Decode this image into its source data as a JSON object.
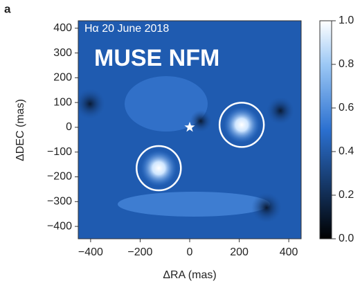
{
  "panel_label": "a",
  "chart_data": {
    "type": "image",
    "annotations": [
      "Hα 20 June 2018",
      "MUSE NFM"
    ],
    "xlabel": "ΔRA (mas)",
    "ylabel": "ΔDEC (mas)",
    "xlim": [
      -450,
      450
    ],
    "ylim": [
      -450,
      430
    ],
    "xticks": [
      {
        "value": -400,
        "label": "−400"
      },
      {
        "value": -200,
        "label": "−200"
      },
      0,
      200,
      400
    ],
    "yticks": [
      {
        "value": -400,
        "label": "−400"
      },
      {
        "value": -300,
        "label": "−300"
      },
      {
        "value": -200,
        "label": "−200"
      },
      {
        "value": -100,
        "label": "−100"
      },
      0,
      100,
      200,
      300,
      400
    ],
    "star": {
      "x": 0,
      "y": 0
    },
    "sources": {
      "x": [
        -125,
        210
      ],
      "y": [
        -165,
        10
      ]
    },
    "clim": [
      0,
      1
    ],
    "cticks": [
      {
        "value": 0,
        "label": "0.0"
      },
      {
        "value": 0.2,
        "label": "0.2"
      },
      {
        "value": 0.4,
        "label": "0.4"
      },
      {
        "value": 0.6,
        "label": "0.6"
      },
      {
        "value": 0.8,
        "label": "0.8"
      },
      {
        "value": 1,
        "label": "1.0"
      }
    ]
  }
}
